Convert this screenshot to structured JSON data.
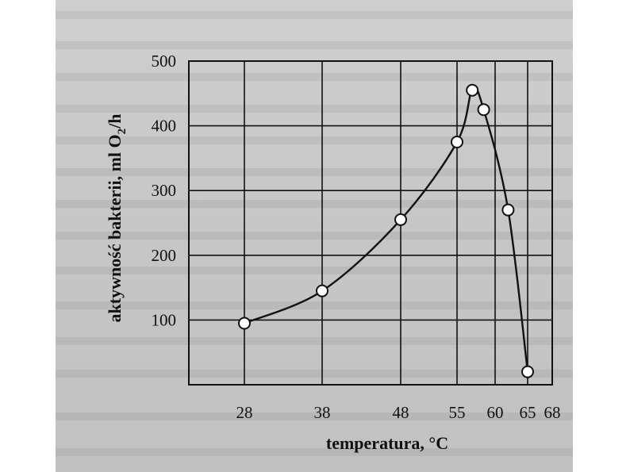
{
  "chart_data": {
    "type": "line",
    "title": "",
    "xlabel": "temperatura, °C",
    "ylabel": "aktywność bakterii, ml O2/h",
    "ylabel_main": "aktywność bakterii, ml O",
    "ylabel_sub": "2",
    "ylabel_end": "/h",
    "x_ticks": [
      "28",
      "38",
      "48",
      "55",
      "60",
      "65",
      "68"
    ],
    "y_ticks": [
      "100",
      "200",
      "300",
      "400",
      "500"
    ],
    "ylim": [
      0,
      500
    ],
    "grid": true,
    "series": [
      {
        "name": "aktywność bakterii",
        "x": [
          28,
          38,
          48,
          55,
          57,
          58.5,
          62,
          65
        ],
        "y": [
          95,
          145,
          255,
          375,
          455,
          425,
          270,
          20
        ]
      }
    ]
  },
  "colors": {
    "paper": "#c8c8c8",
    "ink": "#111111",
    "marker_fill": "#ffffff"
  }
}
